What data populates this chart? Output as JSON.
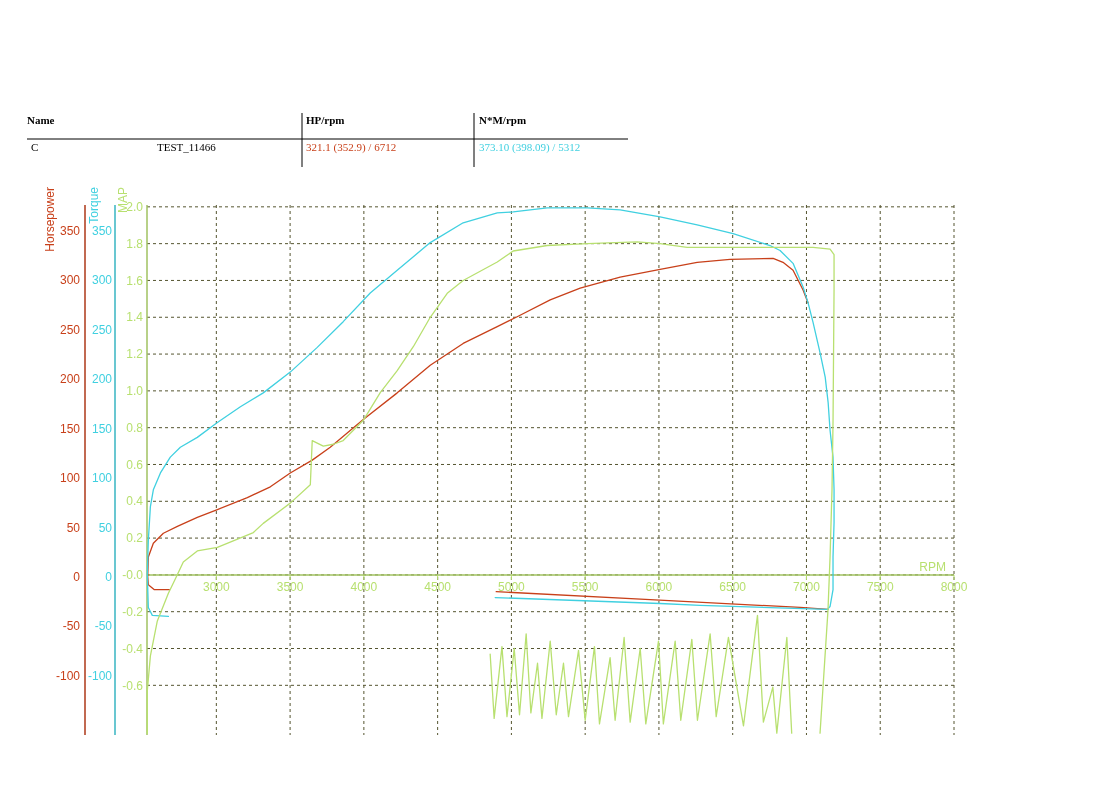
{
  "chart_data": {
    "type": "line",
    "xlabel": "RPM",
    "ylabel": "Horsepower",
    "y2label": "Torque",
    "y3label": "MAP",
    "grid": true,
    "annotations": [
      "Name",
      "HP/rpm",
      "N*M/rpm",
      "C",
      "TEST_11466",
      "321.1 (352.9) / 6712",
      "373.10 (398.09) / 5312"
    ],
    "xlim": [
      2530,
      8000
    ],
    "xticks": [
      3000,
      3500,
      4000,
      4500,
      5000,
      5500,
      6000,
      6500,
      7000,
      7500,
      8000
    ],
    "ylim": [
      -160,
      376
    ],
    "yticks": [
      -100,
      -50,
      0,
      50,
      100,
      150,
      200,
      250,
      300,
      350
    ],
    "y2lim": [
      -160,
      376
    ],
    "y2ticks": [
      -100,
      -50,
      0,
      50,
      100,
      150,
      200,
      250,
      300,
      350
    ],
    "y3lim": [
      -0.87,
      2.01
    ],
    "y3ticks": [
      {
        "value": -0.6,
        "label": "-0.6"
      },
      {
        "value": -0.4,
        "label": "-0.4"
      },
      {
        "value": -0.2,
        "label": "-0.2"
      },
      {
        "value": 0,
        "label": "-0.0"
      },
      {
        "value": 0.2,
        "label": "0.2"
      },
      {
        "value": 0.4,
        "label": "0.4"
      },
      {
        "value": 0.6,
        "label": "0.6"
      },
      {
        "value": 0.8,
        "label": "0.8"
      },
      {
        "value": 1,
        "label": "1.0"
      },
      {
        "value": 1.2,
        "label": "1.2"
      },
      {
        "value": 1.4,
        "label": "1.4"
      },
      {
        "value": 1.6,
        "label": "1.6"
      },
      {
        "value": 1.8,
        "label": "1.8"
      },
      {
        "value": 2,
        "label": "2.0"
      }
    ],
    "series": [
      {
        "color": "#c8401a",
        "x": [
          2682,
          2580,
          2539,
          2535,
          2539,
          2573,
          2641,
          2736,
          2871,
          3007,
          3210,
          3366,
          3501,
          3650,
          3772,
          3996,
          4226,
          4450,
          4673,
          4904,
          5039,
          5263,
          5466,
          5737,
          6008,
          6259,
          6482,
          6774,
          6841,
          6909,
          6977,
          7011,
          7100,
          7146,
          6957,
          5940,
          4897
        ],
        "values": [
          -13,
          -13,
          -8,
          0,
          20,
          34,
          44,
          51,
          60,
          68,
          80,
          91,
          105,
          118,
          131,
          159,
          186,
          214,
          236,
          253,
          263,
          280,
          292,
          303,
          311,
          318,
          321,
          322,
          318,
          310,
          290,
          277,
          null,
          -33,
          -31,
          -23,
          -15
        ]
      },
      {
        "color": "#40d0e0",
        "axis": "y2",
        "x": [
          2675,
          2566,
          2539,
          2532,
          2539,
          2553,
          2573,
          2621,
          2688,
          2756,
          2871,
          3007,
          3163,
          3318,
          3501,
          3684,
          3860,
          4043,
          4226,
          4450,
          4673,
          4904,
          5012,
          5243,
          5514,
          5737,
          6008,
          6259,
          6503,
          6753,
          6821,
          6909,
          6977,
          7011,
          7045,
          7093,
          7127,
          7147,
          7160,
          7180,
          7187,
          7187,
          7180,
          7180,
          7160,
          7140,
          6279,
          6008,
          4890
        ],
        "values": [
          -40,
          -39,
          -31,
          2,
          37,
          71,
          88,
          105,
          121,
          131,
          141,
          156,
          172,
          186,
          207,
          232,
          258,
          287,
          310,
          338,
          358,
          368,
          369,
          373,
          373,
          371,
          364,
          356,
          347,
          335,
          330,
          317,
          293,
          277,
          257,
          226,
          202,
          176,
          148,
          121,
          88,
          55,
          20,
          -13,
          -30,
          -33,
          -29,
          -27,
          -21
        ]
      },
      {
        "color": "#b8e070",
        "axis": "y3",
        "x": [
          2532,
          2532,
          2553,
          2600,
          2675,
          2729,
          2776,
          2871,
          3007,
          3251,
          3318,
          3501,
          3637,
          3650,
          3725,
          3793,
          3860,
          3996,
          4111,
          4226,
          4335,
          4450,
          4565,
          4673,
          4904,
          5012,
          5243,
          5514,
          5852,
          6008,
          6191,
          6482,
          7045,
          7160,
          7187,
          7187,
          7180,
          7173,
          7160,
          7146,
          7092,
          7000,
          6900,
          6867,
          6799,
          6772,
          6708,
          6668,
          6573,
          6471,
          6388,
          6347,
          6261,
          6223,
          6148,
          6110,
          6030,
          5997,
          5911,
          5873,
          5805,
          5764,
          5703,
          5669,
          5597,
          5563,
          5500,
          5455,
          5387,
          5353,
          5304,
          5263,
          5207,
          5177,
          5132,
          5100,
          5055,
          5019,
          4970,
          4936,
          4883,
          4856
        ],
        "values": [
          -0.86,
          -0.63,
          -0.44,
          -0.25,
          -0.1,
          -0.01,
          0.07,
          0.13,
          0.15,
          0.23,
          0.28,
          0.39,
          0.49,
          0.73,
          0.7,
          0.71,
          0.73,
          0.84,
          0.99,
          1.11,
          1.24,
          1.4,
          1.53,
          1.6,
          1.7,
          1.76,
          1.79,
          1.8,
          1.81,
          1.8,
          1.78,
          1.78,
          1.78,
          1.77,
          1.74,
          1.55,
          0.83,
          0.46,
          0.1,
          -0.19,
          -0.86,
          null,
          -0.86,
          -0.34,
          -0.86,
          -0.61,
          -0.8,
          -0.22,
          -0.82,
          -0.34,
          -0.77,
          -0.32,
          -0.79,
          -0.35,
          -0.79,
          -0.36,
          -0.81,
          -0.36,
          -0.81,
          -0.4,
          -0.8,
          -0.34,
          -0.79,
          -0.45,
          -0.81,
          -0.39,
          -0.79,
          -0.41,
          -0.77,
          -0.48,
          -0.76,
          -0.36,
          -0.78,
          -0.48,
          -0.75,
          -0.32,
          -0.76,
          -0.4,
          -0.77,
          -0.39,
          -0.78,
          -0.43
        ]
      }
    ]
  }
}
